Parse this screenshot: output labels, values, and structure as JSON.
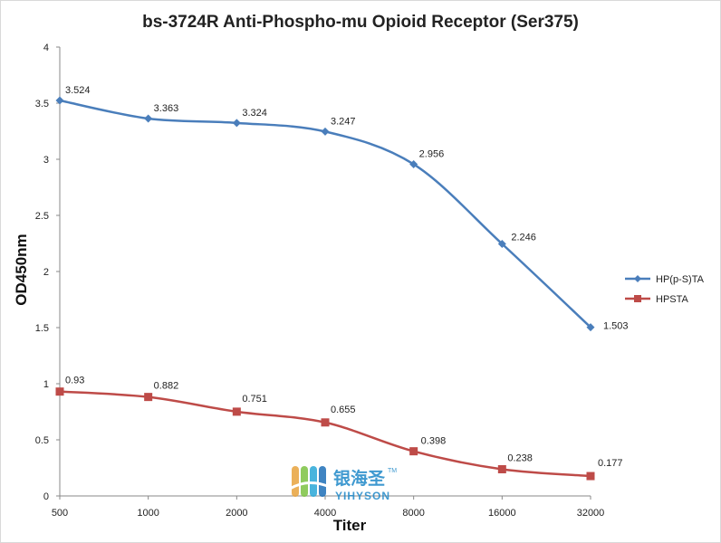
{
  "chart_data": {
    "type": "line",
    "title": "bs-3724R Anti-Phospho-mu Opioid Receptor (Ser375)",
    "xlabel": "Titer",
    "ylabel": "OD450nm",
    "categories": [
      "500",
      "1000",
      "2000",
      "4000",
      "8000",
      "16000",
      "32000"
    ],
    "ylim": [
      0,
      4
    ],
    "yticks": [
      "0",
      "0.5",
      "1",
      "1.5",
      "2",
      "2.5",
      "3",
      "3.5",
      "4"
    ],
    "grid": false,
    "legend_position": "right",
    "series": [
      {
        "name": "HP(p-S)TA",
        "color": "#4a7ebb",
        "marker": "diamond",
        "values": [
          3.524,
          3.363,
          3.324,
          3.247,
          2.956,
          2.246,
          1.503
        ],
        "labels": [
          "3.524",
          "3.363",
          "3.324",
          "3.247",
          "2.956",
          "2.246",
          "1.503"
        ]
      },
      {
        "name": "HPSTA",
        "color": "#be4b48",
        "marker": "square",
        "values": [
          0.93,
          0.882,
          0.751,
          0.655,
          0.398,
          0.238,
          0.177
        ],
        "labels": [
          "0.93",
          "0.882",
          "0.751",
          "0.655",
          "0.398",
          "0.238",
          "0.177"
        ]
      }
    ]
  },
  "watermark": {
    "brand_cn": "银海圣",
    "brand_en": "YIHYSON",
    "trademark": "TM",
    "logo": "yihyson-logo-icon"
  }
}
